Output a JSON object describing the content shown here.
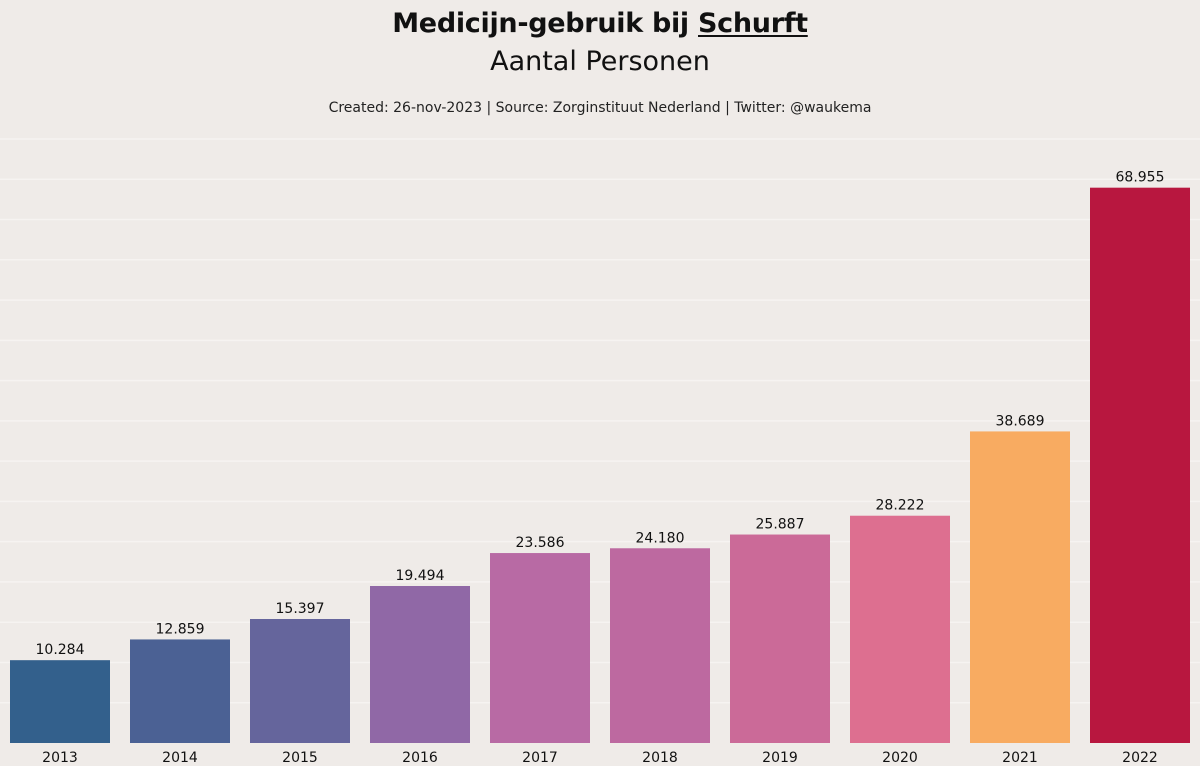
{
  "header": {
    "title_prefix": "Medicijn-gebruik bij ",
    "title_emph": "Schurft",
    "subtitle": "Aantal Personen",
    "credit": "Created: 26-nov-2023 | Source: Zorginstituut Nederland | Twitter: @waukema"
  },
  "chart_data": {
    "type": "bar",
    "title": "Medicijn-gebruik bij Schurft",
    "subtitle": "Aantal Personen",
    "xlabel": "",
    "ylabel": "",
    "categories": [
      "2013",
      "2014",
      "2015",
      "2016",
      "2017",
      "2018",
      "2019",
      "2020",
      "2021",
      "2022"
    ],
    "values": [
      10284,
      12859,
      15397,
      19494,
      23586,
      24180,
      25887,
      28222,
      38689,
      68955
    ],
    "value_labels": [
      "10.284",
      "12.859",
      "15.397",
      "19.494",
      "23.586",
      "24.180",
      "25.887",
      "28.222",
      "38.689",
      "68.955"
    ],
    "colors": [
      "#33608c",
      "#4b6194",
      "#65659c",
      "#9068a6",
      "#b86aa4",
      "#bd69a0",
      "#cb6a98",
      "#dd6f90",
      "#f8ab61",
      "#b8173f"
    ],
    "ylim": [
      0,
      75000
    ],
    "grid": true,
    "grid_step": 5000,
    "legend": "none"
  }
}
